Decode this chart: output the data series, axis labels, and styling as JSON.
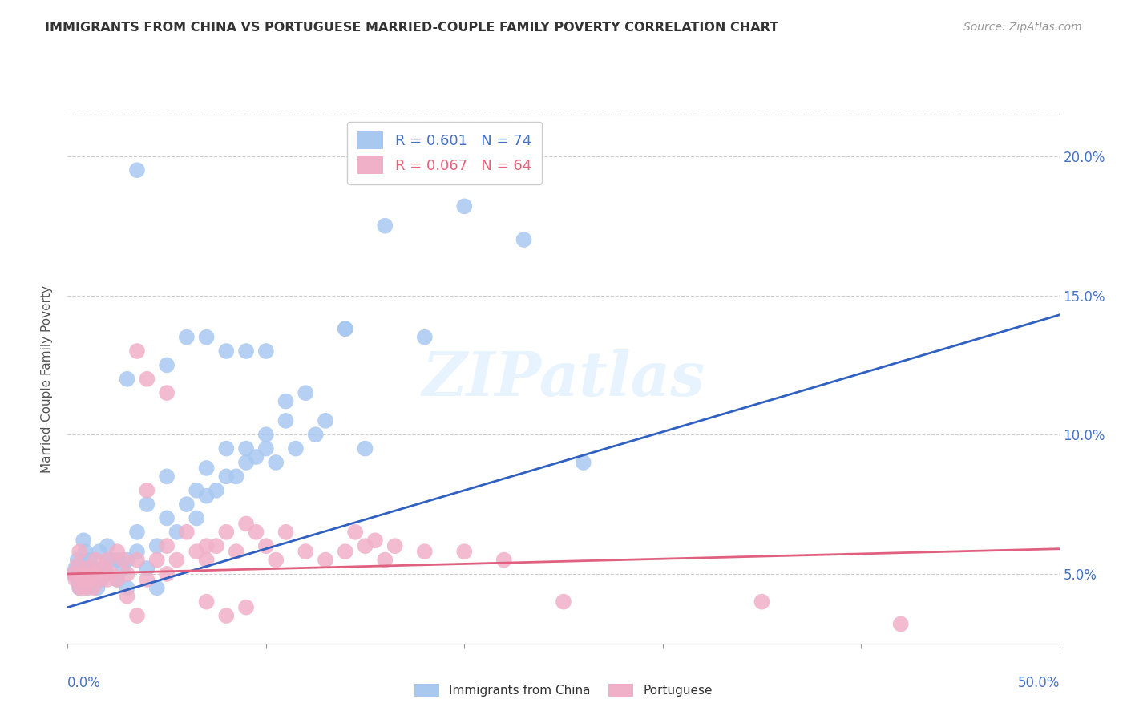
{
  "title": "IMMIGRANTS FROM CHINA VS PORTUGUESE MARRIED-COUPLE FAMILY POVERTY CORRELATION CHART",
  "source": "Source: ZipAtlas.com",
  "ylabel": "Married-Couple Family Poverty",
  "legend_blue_r": "R = 0.601",
  "legend_blue_n": "N = 74",
  "legend_pink_r": "R = 0.067",
  "legend_pink_n": "N = 64",
  "legend_label_blue": "Immigrants from China",
  "legend_label_pink": "Portuguese",
  "blue_color": "#a8c8f0",
  "pink_color": "#f0b0c8",
  "blue_line_color": "#3060c0",
  "pink_line_color": "#e06080",
  "blue_legend_color": "#4472c4",
  "pink_legend_color": "#e8607a",
  "watermark": "ZIPatlas",
  "blue_scatter": [
    [
      0.3,
      5.0
    ],
    [
      0.4,
      5.2
    ],
    [
      0.5,
      4.8
    ],
    [
      0.5,
      5.5
    ],
    [
      0.6,
      4.5
    ],
    [
      0.6,
      5.0
    ],
    [
      0.7,
      4.7
    ],
    [
      0.7,
      5.3
    ],
    [
      0.8,
      4.8
    ],
    [
      0.8,
      6.2
    ],
    [
      0.9,
      5.8
    ],
    [
      1.0,
      4.5
    ],
    [
      1.0,
      5.0
    ],
    [
      1.1,
      5.5
    ],
    [
      1.2,
      4.8
    ],
    [
      1.3,
      5.2
    ],
    [
      1.4,
      5.0
    ],
    [
      1.5,
      4.5
    ],
    [
      1.6,
      5.8
    ],
    [
      1.7,
      4.8
    ],
    [
      1.8,
      5.2
    ],
    [
      2.0,
      5.0
    ],
    [
      2.0,
      6.0
    ],
    [
      2.2,
      5.5
    ],
    [
      2.5,
      4.8
    ],
    [
      2.5,
      5.5
    ],
    [
      2.8,
      5.2
    ],
    [
      3.0,
      5.5
    ],
    [
      3.0,
      4.5
    ],
    [
      3.5,
      5.8
    ],
    [
      3.5,
      6.5
    ],
    [
      4.0,
      5.2
    ],
    [
      4.0,
      7.5
    ],
    [
      4.5,
      6.0
    ],
    [
      4.5,
      4.5
    ],
    [
      5.0,
      7.0
    ],
    [
      5.0,
      8.5
    ],
    [
      5.5,
      6.5
    ],
    [
      6.0,
      7.5
    ],
    [
      6.5,
      7.0
    ],
    [
      6.5,
      8.0
    ],
    [
      7.0,
      7.8
    ],
    [
      7.0,
      8.8
    ],
    [
      7.5,
      8.0
    ],
    [
      8.0,
      8.5
    ],
    [
      8.0,
      9.5
    ],
    [
      8.5,
      8.5
    ],
    [
      9.0,
      9.0
    ],
    [
      9.0,
      9.5
    ],
    [
      9.5,
      9.2
    ],
    [
      10.0,
      10.0
    ],
    [
      10.0,
      9.5
    ],
    [
      10.5,
      9.0
    ],
    [
      11.0,
      10.5
    ],
    [
      11.5,
      9.5
    ],
    [
      12.0,
      11.5
    ],
    [
      12.5,
      10.0
    ],
    [
      13.0,
      10.5
    ],
    [
      14.0,
      13.8
    ],
    [
      3.0,
      12.0
    ],
    [
      5.0,
      12.5
    ],
    [
      6.0,
      13.5
    ],
    [
      7.0,
      13.5
    ],
    [
      8.0,
      13.0
    ],
    [
      9.0,
      13.0
    ],
    [
      10.0,
      13.0
    ],
    [
      11.0,
      11.2
    ],
    [
      15.0,
      9.5
    ],
    [
      16.0,
      17.5
    ],
    [
      20.0,
      18.2
    ],
    [
      23.0,
      17.0
    ],
    [
      26.0,
      9.0
    ],
    [
      14.0,
      13.8
    ],
    [
      18.0,
      13.5
    ],
    [
      3.5,
      19.5
    ]
  ],
  "pink_scatter": [
    [
      0.3,
      5.0
    ],
    [
      0.4,
      4.8
    ],
    [
      0.5,
      5.3
    ],
    [
      0.6,
      4.5
    ],
    [
      0.6,
      5.8
    ],
    [
      0.7,
      4.8
    ],
    [
      0.8,
      5.0
    ],
    [
      0.9,
      4.5
    ],
    [
      1.0,
      5.2
    ],
    [
      1.1,
      4.8
    ],
    [
      1.2,
      5.0
    ],
    [
      1.3,
      4.5
    ],
    [
      1.4,
      5.5
    ],
    [
      1.5,
      5.0
    ],
    [
      1.6,
      4.8
    ],
    [
      1.8,
      5.2
    ],
    [
      2.0,
      4.8
    ],
    [
      2.0,
      5.5
    ],
    [
      2.2,
      5.0
    ],
    [
      2.5,
      4.8
    ],
    [
      2.5,
      5.8
    ],
    [
      2.8,
      5.5
    ],
    [
      3.0,
      5.0
    ],
    [
      3.0,
      4.2
    ],
    [
      3.5,
      5.5
    ],
    [
      3.5,
      3.5
    ],
    [
      4.0,
      4.8
    ],
    [
      4.0,
      8.0
    ],
    [
      4.5,
      5.5
    ],
    [
      5.0,
      5.0
    ],
    [
      5.0,
      6.0
    ],
    [
      5.5,
      5.5
    ],
    [
      6.0,
      6.5
    ],
    [
      6.5,
      5.8
    ],
    [
      7.0,
      6.0
    ],
    [
      7.0,
      5.5
    ],
    [
      7.5,
      6.0
    ],
    [
      8.0,
      6.5
    ],
    [
      8.5,
      5.8
    ],
    [
      9.0,
      6.8
    ],
    [
      9.5,
      6.5
    ],
    [
      10.0,
      6.0
    ],
    [
      10.5,
      5.5
    ],
    [
      11.0,
      6.5
    ],
    [
      12.0,
      5.8
    ],
    [
      13.0,
      5.5
    ],
    [
      14.0,
      5.8
    ],
    [
      14.5,
      6.5
    ],
    [
      15.0,
      6.0
    ],
    [
      15.5,
      6.2
    ],
    [
      16.0,
      5.5
    ],
    [
      16.5,
      6.0
    ],
    [
      18.0,
      5.8
    ],
    [
      20.0,
      5.8
    ],
    [
      22.0,
      5.5
    ],
    [
      4.0,
      12.0
    ],
    [
      5.0,
      11.5
    ],
    [
      3.5,
      13.0
    ],
    [
      7.0,
      4.0
    ],
    [
      8.0,
      3.5
    ],
    [
      9.0,
      3.8
    ],
    [
      25.0,
      4.0
    ],
    [
      35.0,
      4.0
    ],
    [
      42.0,
      3.2
    ]
  ],
  "xlim": [
    0,
    50
  ],
  "ylim": [
    2.5,
    21.5
  ],
  "yticks": [
    5,
    10,
    15,
    20
  ],
  "blue_line_slope": 0.21,
  "blue_line_intercept": 3.8,
  "pink_line_slope": 0.018,
  "pink_line_intercept": 5.0
}
